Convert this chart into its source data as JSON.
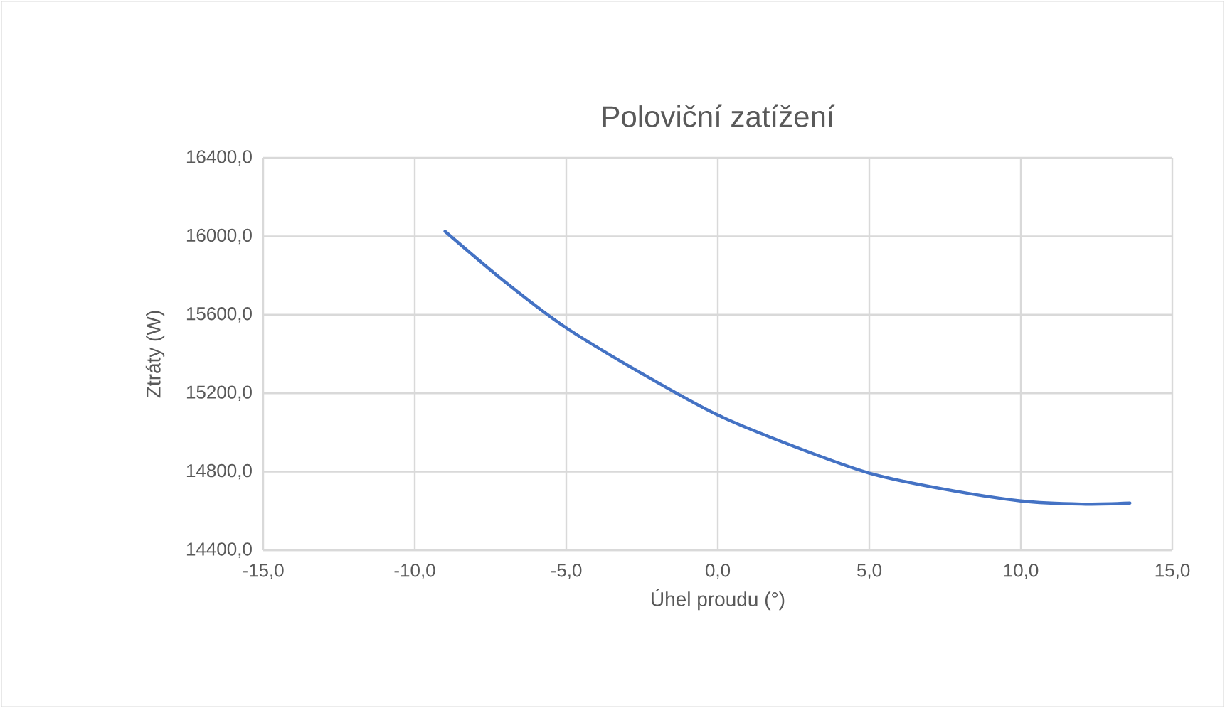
{
  "chart_data": {
    "type": "line",
    "title": "Poloviční zatížení",
    "xlabel": "Úhel proudu (°)",
    "ylabel": "Ztráty (W)",
    "x": [
      -9.0,
      -7.0,
      -5.0,
      -2.5,
      0.0,
      2.5,
      5.0,
      7.5,
      10.0,
      12.0,
      13.6
    ],
    "series": [
      {
        "color": "#4472c4",
        "values": [
          16025,
          15765,
          15533,
          15300,
          15089,
          14930,
          14793,
          14710,
          14651,
          14635,
          14640
        ]
      }
    ],
    "xlim": [
      -15,
      15
    ],
    "ylim": [
      14400,
      16400
    ],
    "xticks": [
      {
        "value": -15,
        "label": "-15,0"
      },
      {
        "value": -10,
        "label": "-10,0"
      },
      {
        "value": -5,
        "label": "-5,0"
      },
      {
        "value": 0,
        "label": "0,0"
      },
      {
        "value": 5,
        "label": "5,0"
      },
      {
        "value": 10,
        "label": "10,0"
      },
      {
        "value": 15,
        "label": "15,0"
      }
    ],
    "yticks": [
      {
        "value": 14400,
        "label": "14400,0"
      },
      {
        "value": 14800,
        "label": "14800,0"
      },
      {
        "value": 15200,
        "label": "15200,0"
      },
      {
        "value": 15600,
        "label": "15600,0"
      },
      {
        "value": 16000,
        "label": "16000,0"
      },
      {
        "value": 16400,
        "label": "16400,0"
      }
    ],
    "grid": true,
    "legend": false,
    "marker": "none",
    "line_style": "solid"
  }
}
